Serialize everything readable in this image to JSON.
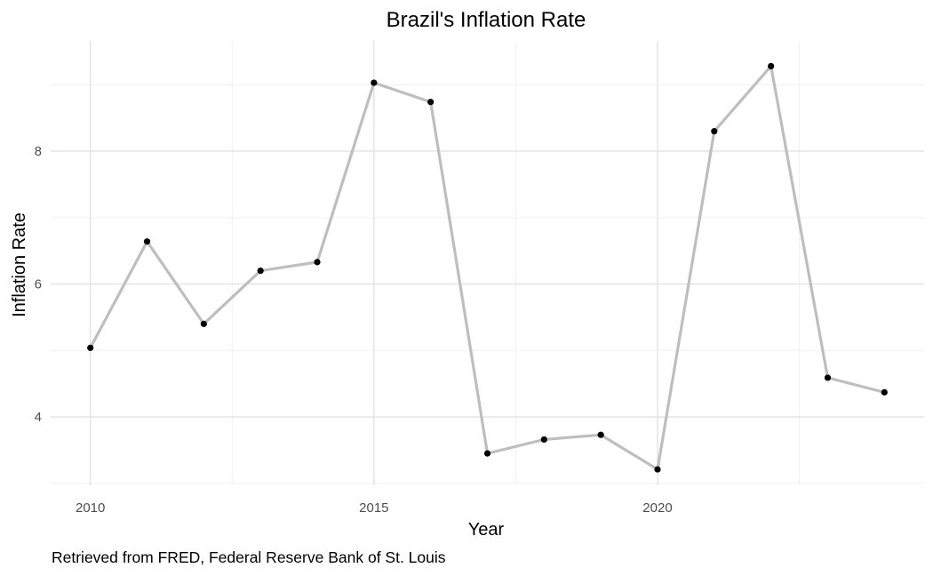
{
  "chart_data": {
    "type": "line",
    "title": "Brazil's Inflation Rate",
    "xlabel": "Year",
    "ylabel": "Inflation Rate",
    "caption": "Retrieved from FRED, Federal Reserve Bank of St. Louis",
    "xlim": [
      2009.3,
      2024.7
    ],
    "ylim": [
      2.97,
      9.66
    ],
    "x_ticks": [
      2010,
      2015,
      2020
    ],
    "x_minor_ticks": [
      2012.5,
      2017.5,
      2022.5
    ],
    "y_ticks": [
      4,
      6,
      8
    ],
    "y_minor_ticks": [
      3,
      5,
      7,
      9
    ],
    "x_tick_labels": [
      "2010",
      "2015",
      "2020"
    ],
    "y_tick_labels": [
      "4",
      "6",
      "8"
    ],
    "grid": true,
    "line_color": "#bebebe",
    "point_color": "#000000",
    "series": [
      {
        "x": [
          2010,
          2011,
          2012,
          2013,
          2014,
          2015,
          2016,
          2017,
          2018,
          2019,
          2020,
          2021,
          2022,
          2023,
          2024
        ],
        "values": [
          5.04,
          6.64,
          5.4,
          6.2,
          6.33,
          9.03,
          8.74,
          3.45,
          3.66,
          3.73,
          3.21,
          8.3,
          9.28,
          4.59,
          4.37
        ]
      }
    ]
  }
}
